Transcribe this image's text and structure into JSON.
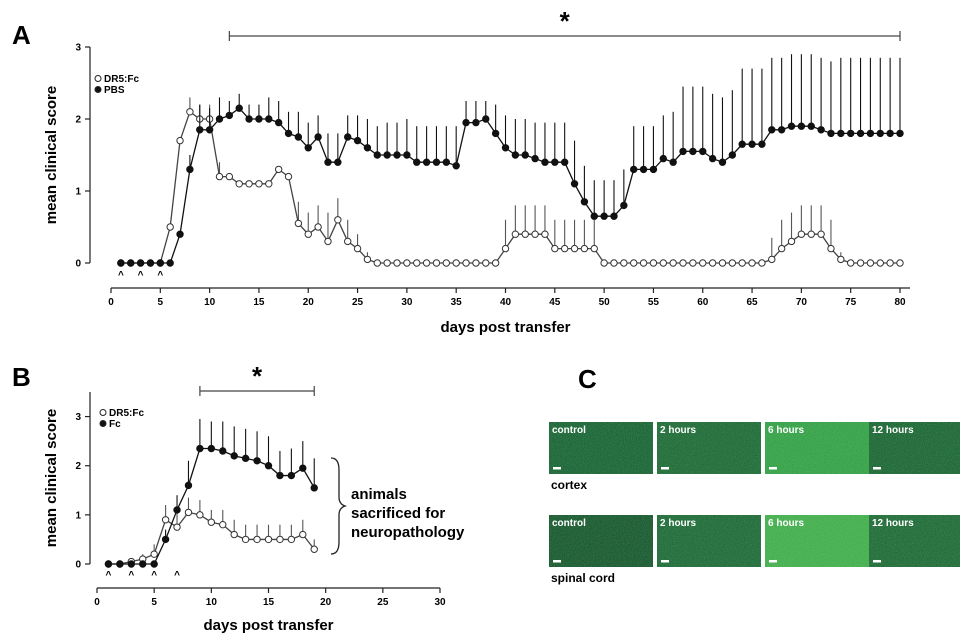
{
  "panels": {
    "A": "A",
    "B": "B",
    "C": "C"
  },
  "chart_data": [
    {
      "type": "line",
      "panel": "A",
      "xlabel": "days post transfer",
      "ylabel": "mean clinical score",
      "xlim": [
        0,
        80
      ],
      "ylim": [
        0,
        3
      ],
      "xticks": [
        0,
        5,
        10,
        15,
        20,
        25,
        30,
        35,
        40,
        45,
        50,
        55,
        60,
        65,
        70,
        75,
        80
      ],
      "yticks": [
        0,
        1,
        2,
        3
      ],
      "legend_position": "top-left",
      "grid": false,
      "x": [
        1,
        2,
        3,
        4,
        5,
        6,
        7,
        8,
        9,
        10,
        11,
        12,
        13,
        14,
        15,
        16,
        17,
        18,
        19,
        20,
        21,
        22,
        23,
        24,
        25,
        26,
        27,
        28,
        29,
        30,
        31,
        32,
        33,
        34,
        35,
        36,
        37,
        38,
        39,
        40,
        41,
        42,
        43,
        44,
        45,
        46,
        47,
        48,
        49,
        50,
        51,
        52,
        53,
        54,
        55,
        56,
        57,
        58,
        59,
        60,
        61,
        62,
        63,
        64,
        65,
        66,
        67,
        68,
        69,
        70,
        71,
        72,
        73,
        74,
        75,
        76,
        77,
        78,
        79,
        80
      ],
      "series": [
        {
          "name": "DR5:Fc",
          "marker": "open-circle",
          "values": [
            0,
            0,
            0,
            0,
            0,
            0.5,
            1.7,
            2.1,
            2.0,
            2.0,
            1.2,
            1.2,
            1.1,
            1.1,
            1.1,
            1.1,
            1.3,
            1.2,
            0.55,
            0.4,
            0.5,
            0.3,
            0.6,
            0.3,
            0.2,
            0.05,
            0,
            0,
            0,
            0,
            0,
            0,
            0,
            0,
            0,
            0,
            0,
            0,
            0,
            0.2,
            0.4,
            0.4,
            0.4,
            0.4,
            0.2,
            0.2,
            0.2,
            0.2,
            0.2,
            0,
            0,
            0,
            0,
            0,
            0,
            0,
            0,
            0,
            0,
            0,
            0,
            0,
            0,
            0,
            0,
            0,
            0.05,
            0.2,
            0.3,
            0.4,
            0.4,
            0.4,
            0.2,
            0.05,
            0,
            0,
            0,
            0,
            0,
            0
          ],
          "errors": [
            0,
            0,
            0,
            0,
            0,
            0,
            0,
            0.2,
            0.2,
            0.2,
            0.2,
            0,
            0,
            0,
            0,
            0,
            0,
            0,
            0.3,
            0.3,
            0.3,
            0.4,
            0.3,
            0.3,
            0.2,
            0.1,
            0,
            0,
            0,
            0,
            0,
            0,
            0,
            0,
            0,
            0,
            0,
            0,
            0,
            0.4,
            0.4,
            0.4,
            0.4,
            0.4,
            0.4,
            0.4,
            0.4,
            0.4,
            0.4,
            0,
            0,
            0,
            0,
            0,
            0,
            0,
            0,
            0,
            0,
            0,
            0,
            0,
            0,
            0,
            0,
            0,
            0.3,
            0.4,
            0.4,
            0.4,
            0.4,
            0.4,
            0.4,
            0.1,
            0,
            0,
            0,
            0,
            0,
            0
          ]
        },
        {
          "name": "PBS",
          "marker": "filled-circle",
          "values": [
            0,
            0,
            0,
            0,
            0,
            0,
            0.4,
            1.3,
            1.85,
            1.85,
            2.0,
            2.05,
            2.15,
            2.0,
            2.0,
            2.0,
            1.95,
            1.8,
            1.75,
            1.6,
            1.75,
            1.4,
            1.4,
            1.75,
            1.7,
            1.6,
            1.5,
            1.5,
            1.5,
            1.5,
            1.4,
            1.4,
            1.4,
            1.4,
            1.35,
            1.95,
            1.95,
            2.0,
            1.8,
            1.6,
            1.5,
            1.5,
            1.45,
            1.4,
            1.4,
            1.4,
            1.1,
            0.85,
            0.65,
            0.65,
            0.65,
            0.8,
            1.3,
            1.3,
            1.3,
            1.45,
            1.4,
            1.55,
            1.55,
            1.55,
            1.45,
            1.4,
            1.5,
            1.65,
            1.65,
            1.65,
            1.85,
            1.85,
            1.9,
            1.9,
            1.9,
            1.85,
            1.8,
            1.8,
            1.8,
            1.8,
            1.8,
            1.8,
            1.8,
            1.8
          ],
          "errors": [
            0,
            0,
            0,
            0,
            0,
            0,
            0,
            0.2,
            0.35,
            0.3,
            0.3,
            0.2,
            0.2,
            0.2,
            0.2,
            0.3,
            0.3,
            0.3,
            0.35,
            0.35,
            0.3,
            0.4,
            0.4,
            0.3,
            0.35,
            0.4,
            0.4,
            0.45,
            0.45,
            0.5,
            0.5,
            0.5,
            0.5,
            0.5,
            0.55,
            0.3,
            0.3,
            0.25,
            0.4,
            0.45,
            0.5,
            0.5,
            0.5,
            0.55,
            0.55,
            0.55,
            0.6,
            0.5,
            0.5,
            0.5,
            0.5,
            0.5,
            0.6,
            0.6,
            0.6,
            0.6,
            0.7,
            0.9,
            0.9,
            0.9,
            0.9,
            0.9,
            0.9,
            1.05,
            1.05,
            1.05,
            1.0,
            1.0,
            1.0,
            1.0,
            1.0,
            1.0,
            1.0,
            1.05,
            1.05,
            1.05,
            1.05,
            1.05,
            1.05,
            1.05
          ]
        }
      ],
      "injection_day_marks": [
        1,
        3,
        5
      ],
      "injection_mark_symbol": "^",
      "significance": {
        "from": 12,
        "to": 80,
        "label": "*"
      }
    },
    {
      "type": "line",
      "panel": "B",
      "xlabel": "days post transfer",
      "ylabel": "mean clinical score",
      "xlim": [
        0,
        30
      ],
      "ylim": [
        0,
        3.5
      ],
      "xticks": [
        0,
        5,
        10,
        15,
        20,
        25,
        30
      ],
      "yticks": [
        0,
        1,
        2,
        3
      ],
      "legend_position": "top-left",
      "grid": false,
      "x": [
        1,
        2,
        3,
        4,
        5,
        6,
        7,
        8,
        9,
        10,
        11,
        12,
        13,
        14,
        15,
        16,
        17,
        18,
        19
      ],
      "series": [
        {
          "name": "DR5:Fc",
          "marker": "open-circle",
          "values": [
            0,
            0,
            0.05,
            0.1,
            0.2,
            0.9,
            0.75,
            1.05,
            1.0,
            0.85,
            0.8,
            0.6,
            0.5,
            0.5,
            0.5,
            0.5,
            0.5,
            0.6,
            0.3
          ],
          "errors": [
            0,
            0,
            0,
            0.1,
            0.2,
            0.3,
            0.35,
            0.3,
            0.3,
            0.25,
            0.3,
            0.3,
            0.3,
            0.3,
            0.3,
            0.3,
            0.3,
            0.3,
            0.2
          ]
        },
        {
          "name": "Fc",
          "marker": "filled-circle",
          "values": [
            0,
            0,
            0,
            0,
            0,
            0.5,
            1.1,
            1.6,
            2.35,
            2.35,
            2.3,
            2.2,
            2.15,
            2.1,
            2.0,
            1.8,
            1.8,
            1.95,
            1.55
          ],
          "errors": [
            0,
            0,
            0,
            0,
            0,
            0.2,
            0.3,
            0.5,
            0.6,
            0.55,
            0.6,
            0.6,
            0.6,
            0.6,
            0.6,
            0.5,
            0.55,
            0.55,
            0.6
          ]
        }
      ],
      "injection_day_marks": [
        1,
        3,
        5,
        7
      ],
      "injection_mark_symbol": "^",
      "significance": {
        "from": 9,
        "to": 19,
        "label": "*"
      },
      "annotation": [
        "animals",
        "sacrificed for",
        "neuropathology"
      ]
    }
  ],
  "panel_c": {
    "rows": [
      {
        "tissue": "cortex",
        "tiles": [
          {
            "label": "control",
            "color": "#0f5a2c"
          },
          {
            "label": "2 hours",
            "color": "#14612f"
          },
          {
            "label": "6 hours",
            "color": "#2b9a3f"
          },
          {
            "label": "12 hours",
            "color": "#125c2c"
          }
        ]
      },
      {
        "tissue": "spinal cord",
        "tiles": [
          {
            "label": "control",
            "color": "#0e4d26"
          },
          {
            "label": "2 hours",
            "color": "#14602f"
          },
          {
            "label": "6 hours",
            "color": "#3aa845"
          },
          {
            "label": "12 hours",
            "color": "#15612f"
          }
        ]
      }
    ]
  }
}
